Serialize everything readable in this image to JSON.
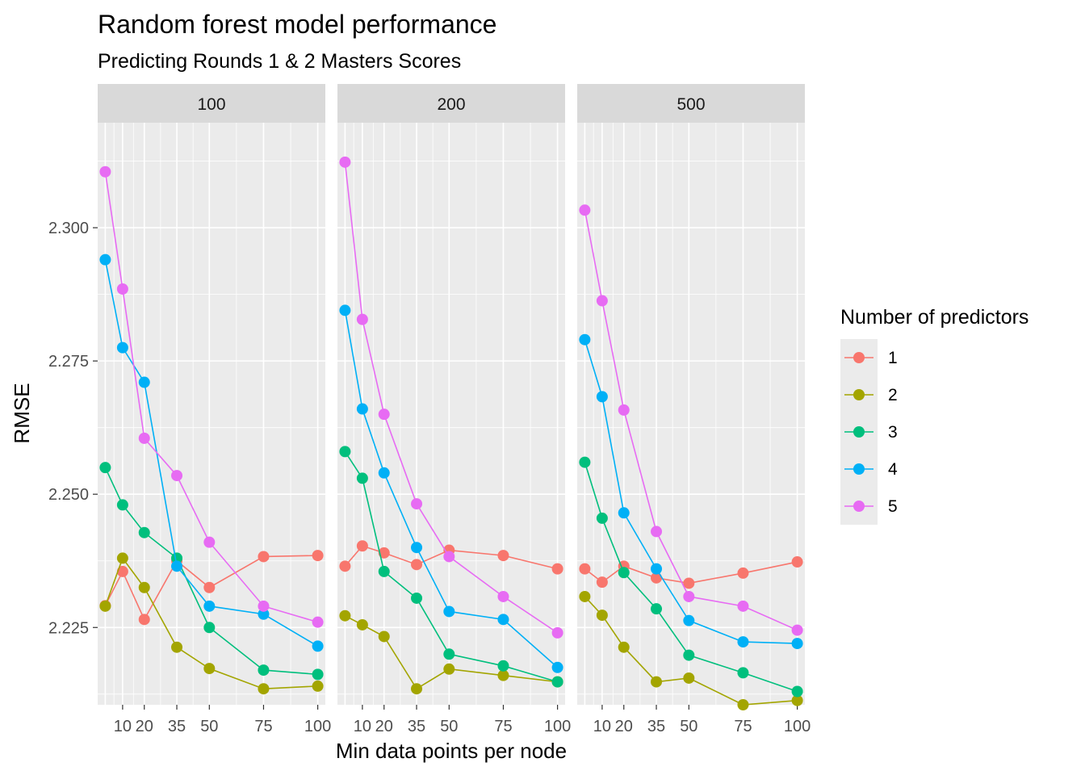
{
  "chart_data": {
    "type": "line",
    "title": "Random forest model performance",
    "subtitle": "Predicting Rounds 1 & 2 Masters Scores",
    "xlabel": "Min data points per node",
    "ylabel": "RMSE",
    "x": [
      2,
      10,
      20,
      35,
      50,
      75,
      100
    ],
    "x_ticks": [
      10,
      20,
      35,
      50,
      75,
      100
    ],
    "xlim": [
      -1.5,
      103.5
    ],
    "ylim": [
      2.2105,
      2.3197
    ],
    "y_ticks": [
      2.225,
      2.25,
      2.275,
      2.3
    ],
    "y_tick_labels": [
      "2.225",
      "2.250",
      "2.275",
      "2.300"
    ],
    "legend_title": "Number of predictors",
    "legend_position": "right",
    "grid": true,
    "facets": [
      {
        "label": "100",
        "series": [
          {
            "name": "1",
            "color": "#F8766D",
            "values": [
              2.2291,
              2.2355,
              2.2265,
              2.2375,
              2.2325,
              2.2383,
              2.2385
            ]
          },
          {
            "name": "2",
            "color": "#A3A500",
            "values": [
              2.229,
              2.238,
              2.2325,
              2.2213,
              2.2173,
              2.2135,
              2.214
            ]
          },
          {
            "name": "3",
            "color": "#00BF7D",
            "values": [
              2.255,
              2.248,
              2.2428,
              2.238,
              2.225,
              2.217,
              2.2162
            ]
          },
          {
            "name": "4",
            "color": "#00B0F6",
            "values": [
              2.294,
              2.2775,
              2.271,
              2.2365,
              2.229,
              2.2275,
              2.2215
            ]
          },
          {
            "name": "5",
            "color": "#E76BF3",
            "values": [
              2.3105,
              2.2885,
              2.2605,
              2.2535,
              2.241,
              2.229,
              2.226
            ]
          }
        ]
      },
      {
        "label": "200",
        "series": [
          {
            "name": "1",
            "color": "#F8766D",
            "values": [
              2.2365,
              2.2403,
              2.239,
              2.2368,
              2.2395,
              2.2385,
              2.236
            ]
          },
          {
            "name": "2",
            "color": "#A3A500",
            "values": [
              2.2272,
              2.2255,
              2.2233,
              2.2135,
              2.2172,
              2.216,
              2.2148
            ]
          },
          {
            "name": "3",
            "color": "#00BF7D",
            "values": [
              2.258,
              2.253,
              2.2355,
              2.2305,
              2.22,
              2.2178,
              2.2148
            ]
          },
          {
            "name": "4",
            "color": "#00B0F6",
            "values": [
              2.2845,
              2.266,
              2.254,
              2.24,
              2.228,
              2.2265,
              2.2175
            ]
          },
          {
            "name": "5",
            "color": "#E76BF3",
            "values": [
              2.3123,
              2.2828,
              2.265,
              2.2482,
              2.2383,
              2.2308,
              2.224
            ]
          }
        ]
      },
      {
        "label": "500",
        "series": [
          {
            "name": "1",
            "color": "#F8766D",
            "values": [
              2.236,
              2.2335,
              2.2365,
              2.2343,
              2.2333,
              2.2352,
              2.2373
            ]
          },
          {
            "name": "2",
            "color": "#A3A500",
            "values": [
              2.2308,
              2.2273,
              2.2213,
              2.2148,
              2.2155,
              2.2105,
              2.2113
            ]
          },
          {
            "name": "3",
            "color": "#00BF7D",
            "values": [
              2.256,
              2.2455,
              2.2353,
              2.2285,
              2.2198,
              2.2165,
              2.213
            ]
          },
          {
            "name": "4",
            "color": "#00B0F6",
            "values": [
              2.279,
              2.2683,
              2.2465,
              2.236,
              2.2263,
              2.2223,
              2.222
            ]
          },
          {
            "name": "5",
            "color": "#E76BF3",
            "values": [
              2.3033,
              2.2863,
              2.2658,
              2.243,
              2.2308,
              2.229,
              2.2245
            ]
          }
        ]
      }
    ]
  }
}
